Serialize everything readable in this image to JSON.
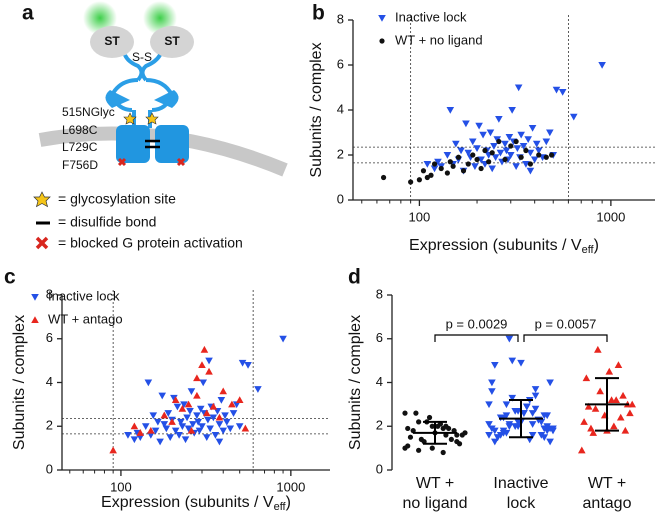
{
  "panel_labels": [
    "a",
    "b",
    "c",
    "d"
  ],
  "diagram": {
    "domain_labels": [
      "ST",
      "ST"
    ],
    "bond": "S-S",
    "mutations": [
      "515NGlyc",
      "L698C",
      "L729C",
      "F756D"
    ],
    "legend": [
      "= glycosylation site",
      "= disulfide bond",
      "= blocked G protein activation"
    ]
  },
  "chart_data": [
    {
      "type": "scatter",
      "xscale": "log",
      "xlim": [
        45,
        1700
      ],
      "ylim": [
        0,
        8
      ],
      "xticks": [
        100,
        1000
      ],
      "xminorticks": [
        50,
        60,
        70,
        80,
        90,
        200,
        300,
        400,
        500,
        600,
        700,
        800,
        900
      ],
      "yticks": [
        0,
        2,
        4,
        6,
        8
      ],
      "ylabel": "Subunits / complex",
      "xlabel": "Expression (subunits / V",
      "xlabel_sub": "eff",
      "xlabel_end": ")",
      "ref_x": [
        90,
        600
      ],
      "ref_y": [
        1.65,
        2.35
      ],
      "series": [
        {
          "name": "Inactive lock",
          "color": "#2450e6",
          "marker": "triangle-down",
          "x": [
            110,
            120,
            125,
            130,
            140,
            145,
            150,
            155,
            160,
            165,
            170,
            175,
            180,
            185,
            190,
            195,
            200,
            205,
            210,
            215,
            220,
            225,
            230,
            235,
            240,
            245,
            250,
            255,
            260,
            265,
            270,
            280,
            285,
            290,
            295,
            300,
            305,
            310,
            320,
            325,
            330,
            335,
            340,
            350,
            360,
            370,
            380,
            390,
            400,
            410,
            420,
            440,
            460,
            480,
            500,
            520,
            560,
            640,
            900,
            380
          ],
          "values": [
            1.6,
            1.4,
            1.7,
            1.5,
            2.0,
            4.0,
            1.6,
            2.5,
            1.8,
            2.2,
            1.3,
            3.4,
            2.1,
            1.9,
            2.6,
            1.5,
            2.3,
            3.3,
            1.8,
            2.9,
            1.6,
            2.2,
            2.0,
            3.0,
            1.4,
            2.4,
            1.9,
            2.7,
            3.6,
            2.1,
            1.7,
            2.5,
            2.2,
            1.8,
            2.8,
            2.0,
            4.0,
            2.6,
            1.5,
            2.3,
            5.0,
            1.9,
            2.9,
            2.4,
            1.6,
            2.7,
            2.1,
            3.2,
            1.8,
            2.5,
            2.2,
            1.9,
            2.6,
            3.0,
            2.0,
            4.9,
            4.8,
            3.7,
            6.0,
            1.3
          ]
        },
        {
          "name": "WT + no ligand",
          "color": "#111111",
          "marker": "circle",
          "x": [
            65,
            90,
            100,
            105,
            110,
            115,
            120,
            130,
            140,
            145,
            150,
            160,
            170,
            180,
            190,
            200,
            210,
            220,
            230,
            240,
            260,
            280,
            300,
            320,
            340,
            360,
            380,
            420,
            460,
            490
          ],
          "values": [
            1.0,
            0.8,
            0.9,
            1.3,
            1.0,
            1.1,
            1.6,
            1.4,
            1.2,
            1.7,
            1.5,
            1.9,
            1.3,
            1.6,
            2.0,
            1.8,
            1.4,
            2.2,
            1.7,
            2.1,
            2.6,
            1.8,
            2.4,
            2.6,
            1.9,
            2.2,
            1.6,
            2.0,
            1.9,
            2.0
          ]
        }
      ]
    },
    {
      "type": "scatter",
      "xscale": "log",
      "xlim": [
        45,
        1700
      ],
      "ylim": [
        0,
        8
      ],
      "xticks": [
        100,
        1000
      ],
      "xminorticks": [
        50,
        60,
        70,
        80,
        90,
        200,
        300,
        400,
        500,
        600,
        700,
        800,
        900
      ],
      "yticks": [
        0,
        2,
        4,
        6,
        8
      ],
      "ylabel": "Subunits / complex",
      "xlabel": "Expression (subunits / V",
      "xlabel_sub": "eff",
      "xlabel_end": ")",
      "ref_x": [
        90,
        600
      ],
      "ref_y": [
        1.65,
        2.35
      ],
      "series": [
        {
          "name": "Inactive lock",
          "color": "#2450e6",
          "marker": "triangle-down",
          "x": [
            110,
            120,
            125,
            130,
            140,
            145,
            150,
            155,
            160,
            165,
            170,
            175,
            180,
            185,
            190,
            195,
            200,
            205,
            210,
            215,
            220,
            225,
            230,
            235,
            240,
            245,
            250,
            255,
            260,
            265,
            270,
            280,
            285,
            290,
            295,
            300,
            305,
            310,
            320,
            325,
            330,
            335,
            340,
            350,
            360,
            370,
            380,
            390,
            400,
            410,
            420,
            440,
            460,
            480,
            500,
            520,
            560,
            640,
            900,
            380
          ],
          "values": [
            1.6,
            1.4,
            1.7,
            1.5,
            2.0,
            4.0,
            1.6,
            2.5,
            1.8,
            2.2,
            1.3,
            3.4,
            2.1,
            1.9,
            2.6,
            1.5,
            2.3,
            3.3,
            1.8,
            2.9,
            1.6,
            2.2,
            2.0,
            3.0,
            1.4,
            2.4,
            1.9,
            2.7,
            3.6,
            2.1,
            1.7,
            2.5,
            2.2,
            1.8,
            2.8,
            2.0,
            4.0,
            2.6,
            1.5,
            2.3,
            5.0,
            1.9,
            2.9,
            2.4,
            1.6,
            2.7,
            2.1,
            3.2,
            1.8,
            2.5,
            2.2,
            1.9,
            2.6,
            3.0,
            2.0,
            4.9,
            4.8,
            3.7,
            6.0,
            1.3
          ]
        },
        {
          "name": "WT + antago",
          "color": "#e8261e",
          "marker": "triangle-up",
          "x": [
            90,
            120,
            130,
            150,
            180,
            200,
            210,
            230,
            250,
            260,
            280,
            300,
            310,
            320,
            330,
            350,
            380,
            400,
            450,
            500,
            540,
            280
          ],
          "values": [
            0.9,
            2.0,
            1.7,
            1.8,
            2.5,
            2.2,
            3.2,
            2.8,
            3.0,
            1.8,
            4.2,
            4.8,
            5.5,
            2.6,
            4.5,
            2.9,
            2.4,
            3.6,
            3.0,
            3.2,
            1.9,
            3.4
          ]
        }
      ]
    },
    {
      "type": "strip",
      "ylim": [
        0,
        8
      ],
      "yticks": [
        0,
        2,
        4,
        6,
        8
      ],
      "ylabel": "Subunits / complex",
      "categories": [
        [
          "WT +",
          "no ligand"
        ],
        [
          "Inactive",
          "lock"
        ],
        [
          "WT +",
          "antago"
        ]
      ],
      "annotations": [
        "p = 0.0029",
        "p = 0.0057"
      ],
      "groups": [
        {
          "color": "#111111",
          "marker": "circle",
          "mean": 1.7,
          "sd": 0.5,
          "values": [
            1.0,
            0.8,
            0.9,
            1.3,
            1.0,
            1.1,
            1.6,
            1.4,
            1.2,
            1.7,
            1.5,
            1.9,
            1.3,
            1.6,
            2.0,
            1.8,
            1.4,
            2.2,
            1.7,
            2.1,
            2.6,
            1.8,
            2.4,
            2.6,
            1.9,
            2.2,
            1.6,
            2.0,
            1.9,
            2.0
          ]
        },
        {
          "color": "#2450e6",
          "marker": "triangle-down",
          "mean": 2.35,
          "sd": 0.85,
          "values": [
            1.6,
            1.4,
            1.7,
            1.5,
            2.0,
            4.0,
            1.6,
            2.5,
            1.8,
            2.2,
            1.3,
            3.4,
            2.1,
            1.9,
            2.6,
            1.5,
            2.3,
            3.3,
            1.8,
            2.9,
            1.6,
            2.2,
            2.0,
            3.0,
            1.4,
            2.4,
            1.9,
            2.7,
            3.6,
            2.1,
            1.7,
            2.5,
            2.2,
            1.8,
            2.8,
            2.0,
            4.0,
            2.6,
            1.5,
            2.3,
            5.0,
            1.9,
            2.9,
            2.4,
            1.6,
            2.7,
            2.1,
            3.2,
            1.8,
            2.5,
            2.2,
            1.9,
            2.6,
            3.0,
            2.0,
            4.9,
            4.8,
            3.7,
            6.0,
            1.3
          ]
        },
        {
          "color": "#e8261e",
          "marker": "triangle-up",
          "mean": 3.0,
          "sd": 1.2,
          "values": [
            0.9,
            2.0,
            1.7,
            1.8,
            2.5,
            2.2,
            3.2,
            2.8,
            3.0,
            1.8,
            4.2,
            4.8,
            5.5,
            2.6,
            4.5,
            2.9,
            2.4,
            3.6,
            3.0,
            3.2,
            1.9,
            3.4
          ]
        }
      ]
    }
  ]
}
